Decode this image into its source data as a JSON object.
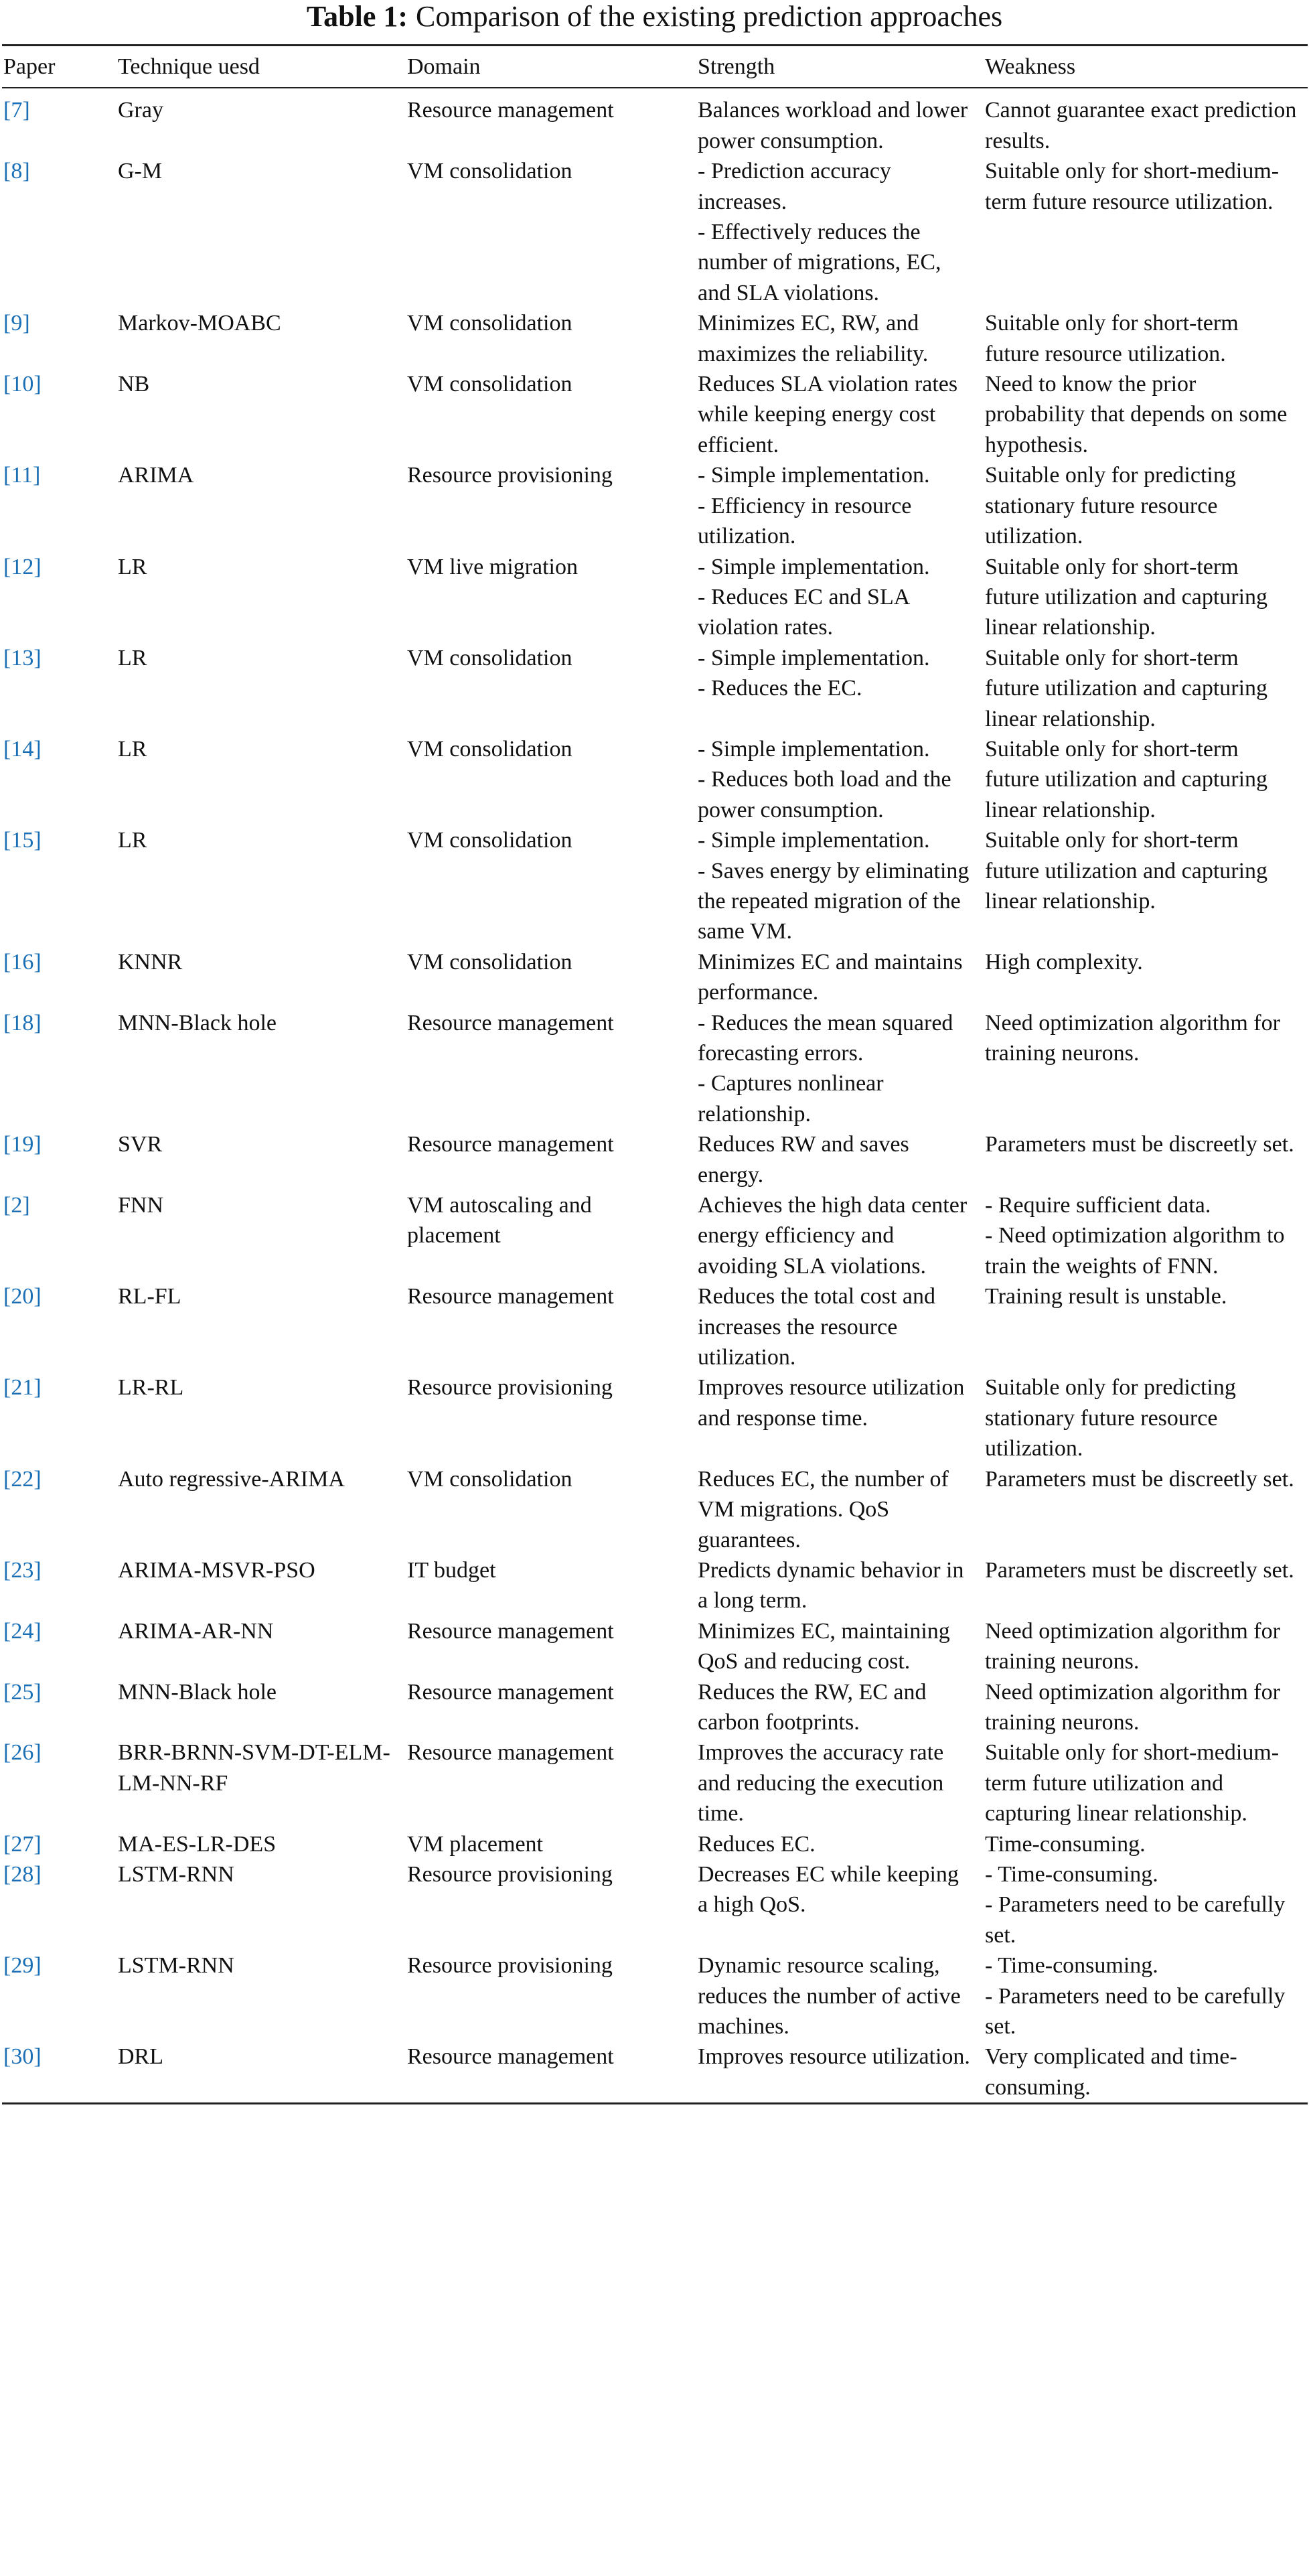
{
  "table": {
    "caption_label": "Table 1:",
    "caption": "Comparison of the existing prediction approaches",
    "headers": [
      "Paper",
      "Technique uesd",
      "Domain",
      "Strength",
      "Weakness"
    ],
    "rows": [
      [
        "[7]",
        "Gray",
        "Resource management",
        "Balances workload and lower power consumption.",
        "Cannot guarantee exact prediction results."
      ],
      [
        "[8]",
        "G-M",
        "VM consolidation",
        [
          "- Prediction accuracy increases.",
          "- Effectively reduces the number of migrations, EC, and SLA violations."
        ],
        "Suitable only for short-medium-term future resource utilization."
      ],
      [
        "[9]",
        "Markov-MOABC",
        "VM consolidation",
        "Minimizes EC, RW, and maximizes the reliability.",
        "Suitable only for short-term future resource utilization."
      ],
      [
        "[10]",
        "NB",
        "VM consolidation",
        "Reduces SLA violation rates while keeping energy cost efficient.",
        "Need to know the prior probability that depends on some hypothesis."
      ],
      [
        "[11]",
        "ARIMA",
        "Resource provisioning",
        [
          "- Simple implementation.",
          "- Efficiency in resource utilization."
        ],
        "Suitable only for predicting stationary future resource utilization."
      ],
      [
        "[12]",
        "LR",
        "VM live migration",
        [
          "- Simple implementation.",
          "- Reduces EC and SLA violation rates."
        ],
        "Suitable only for short-term future utilization and capturing linear relationship."
      ],
      [
        "[13]",
        "LR",
        "VM consolidation",
        [
          "- Simple implementation.",
          "- Reduces the EC."
        ],
        "Suitable only for short-term future utilization and capturing linear relationship."
      ],
      [
        "[14]",
        "LR",
        "VM consolidation",
        [
          "- Simple implementation.",
          "- Reduces both load and the power consumption."
        ],
        "Suitable only for short-term future utilization and capturing linear relationship."
      ],
      [
        "[15]",
        "LR",
        "VM consolidation",
        [
          "- Simple implementation.",
          "- Saves energy by eliminating the repeated migration of the same VM."
        ],
        "Suitable only for short-term future utilization and capturing linear relationship."
      ],
      [
        "[16]",
        "KNNR",
        "VM consolidation",
        "Minimizes EC and maintains performance.",
        "High complexity."
      ],
      [
        "[18]",
        "MNN-Black hole",
        "Resource management",
        [
          "- Reduces the mean squared forecasting errors.",
          "- Captures nonlinear relationship."
        ],
        "Need optimization algorithm for training neurons."
      ],
      [
        "[19]",
        "SVR",
        "Resource management",
        "Reduces RW and saves energy.",
        "Parameters must be discreetly set."
      ],
      [
        "[2]",
        "FNN",
        "VM autoscaling and placement",
        "Achieves the high data center energy efficiency and avoiding SLA violations.",
        [
          "- Require sufficient data.",
          "- Need optimization algorithm to train the weights of FNN."
        ]
      ],
      [
        "[20]",
        "RL-FL",
        "Resource management",
        "Reduces the total cost and increases the resource utilization.",
        "Training result is unstable."
      ],
      [
        "[21]",
        "LR-RL",
        "Resource provisioning",
        "Improves resource utilization and response time.",
        "Suitable only for predicting stationary future resource utilization."
      ],
      [
        "[22]",
        "Auto regressive-ARIMA",
        "VM consolidation",
        "Reduces EC, the number of VM migrations. QoS guarantees.",
        "Parameters must be discreetly set."
      ],
      [
        "[23]",
        "ARIMA-MSVR-PSO",
        "IT budget",
        "Predicts dynamic behavior in a long term.",
        "Parameters must be discreetly set."
      ],
      [
        "[24]",
        "ARIMA-AR-NN",
        "Resource management",
        "Minimizes EC, maintaining QoS and reducing cost.",
        "Need optimization algorithm for training neurons."
      ],
      [
        "[25]",
        "MNN-Black hole",
        "Resource management",
        "Reduces the RW, EC and carbon footprints.",
        "Need optimization algorithm for training neurons."
      ],
      [
        "[26]",
        "BRR-BRNN-SVM-DT-ELM-LM-NN-RF",
        "Resource management",
        "Improves the accuracy rate and reducing the execution time.",
        "Suitable only for short-medium-term future utilization and capturing linear relationship."
      ],
      [
        "[27]",
        "MA-ES-LR-DES",
        "VM placement",
        "Reduces EC.",
        "Time-consuming."
      ],
      [
        "[28]",
        "LSTM-RNN",
        "Resource provisioning",
        "Decreases EC while keeping a high QoS.",
        [
          "- Time-consuming.",
          "- Parameters need to be carefully set."
        ]
      ],
      [
        "[29]",
        "LSTM-RNN",
        "Resource provisioning",
        "Dynamic resource scaling, reduces the number of active machines.",
        [
          "- Time-consuming.",
          "- Parameters need to be carefully set."
        ]
      ],
      [
        "[30]",
        "DRL",
        "Resource management",
        "Improves resource utilization.",
        "Very complicated and time-consuming."
      ]
    ]
  }
}
